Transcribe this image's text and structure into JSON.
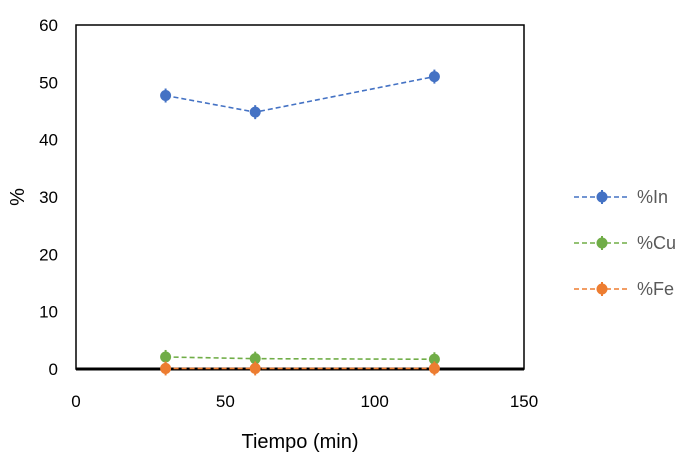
{
  "chart_data": {
    "type": "line",
    "xlabel": "Tiempo (min)",
    "ylabel": "%",
    "xlim": [
      0,
      150
    ],
    "ylim": [
      0,
      60
    ],
    "xticks": [
      0,
      50,
      100,
      150
    ],
    "yticks": [
      0,
      10,
      20,
      30,
      40,
      50,
      60
    ],
    "grid": false,
    "legend_position": "right",
    "x": [
      30,
      60,
      120
    ],
    "series": [
      {
        "name": "%In",
        "values": [
          47.7,
          44.8,
          51.0
        ],
        "color": "#4472C4",
        "line_style": "dashed",
        "marker": "circle"
      },
      {
        "name": "%Cu",
        "values": [
          2.1,
          1.8,
          1.7
        ],
        "color": "#70AD47",
        "line_style": "dashed",
        "marker": "circle"
      },
      {
        "name": "%Fe",
        "values": [
          0.1,
          0.1,
          0.1
        ],
        "color": "#ED7D31",
        "line_style": "dashed",
        "marker": "circle"
      }
    ]
  }
}
